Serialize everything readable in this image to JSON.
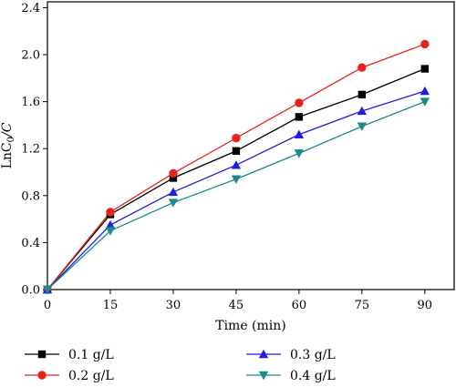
{
  "chart_data": {
    "type": "line",
    "xlabel": "Time (min)",
    "ylabel": "LnC0/C",
    "ylabel_parts": {
      "main": "LnC",
      "sub": "0",
      "tail": "/C"
    },
    "xlim": [
      0,
      97
    ],
    "ylim": [
      0,
      2.45
    ],
    "x_ticks": [
      0,
      15,
      30,
      45,
      60,
      75,
      90
    ],
    "y_ticks": [
      0.0,
      0.4,
      0.8,
      1.2,
      1.6,
      2.0,
      2.4
    ],
    "y_tick_labels": [
      "0.0",
      "0.4",
      "0.8",
      "1.2",
      "1.6",
      "2.0",
      "2.4"
    ],
    "x": [
      0,
      15,
      30,
      45,
      60,
      75,
      90
    ],
    "grid": false,
    "legend_position": "bottom",
    "series": [
      {
        "name": "0.1 g/L",
        "color": "#000000",
        "marker": "square",
        "values": [
          0,
          0.64,
          0.95,
          1.18,
          1.47,
          1.66,
          1.88
        ]
      },
      {
        "name": "0.2 g/L",
        "color": "#e8211c",
        "marker": "circle",
        "values": [
          0,
          0.66,
          0.99,
          1.29,
          1.59,
          1.89,
          2.09
        ]
      },
      {
        "name": "0.3 g/L",
        "color": "#1f1fd8",
        "marker": "triangle-up",
        "values": [
          0,
          0.55,
          0.83,
          1.06,
          1.32,
          1.52,
          1.69
        ]
      },
      {
        "name": "0.4 g/L",
        "color": "#1a8a8a",
        "marker": "triangle-down",
        "values": [
          0,
          0.5,
          0.74,
          0.94,
          1.16,
          1.39,
          1.6
        ]
      }
    ]
  }
}
